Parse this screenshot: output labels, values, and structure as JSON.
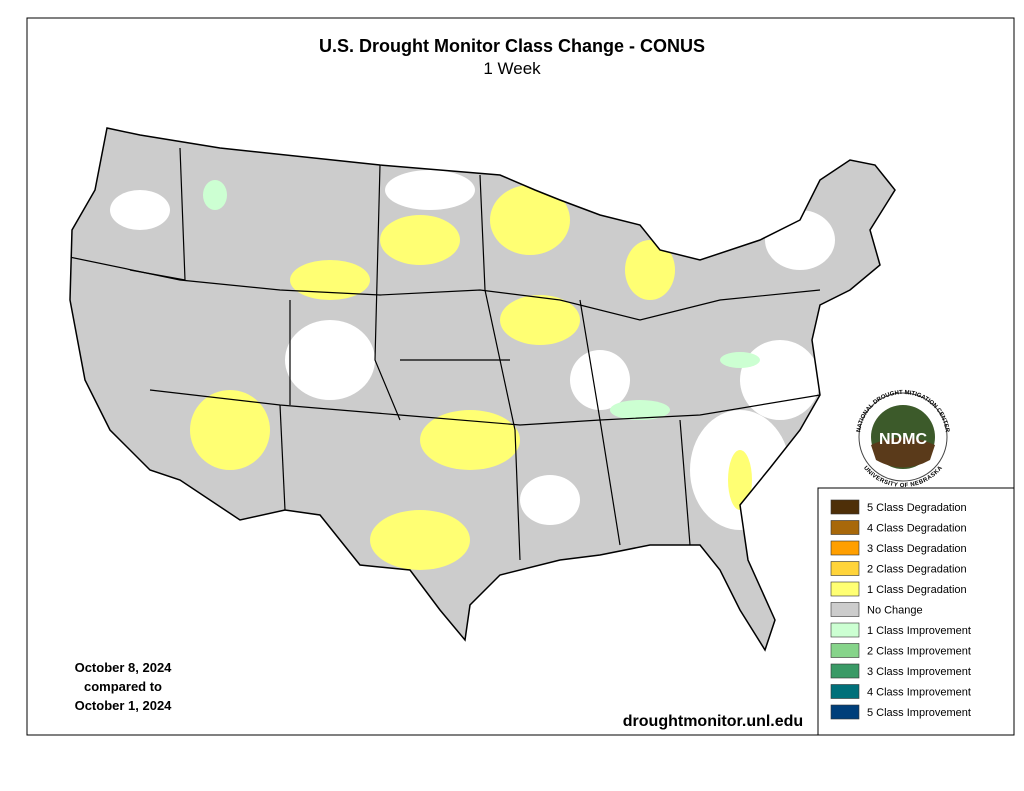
{
  "header": {
    "title": "U.S. Drought Monitor Class Change - CONUS",
    "subtitle": "1 Week"
  },
  "dates": [
    "October 8, 2024",
    "compared to",
    "October 1, 2024"
  ],
  "source": "droughtmonitor.unl.edu",
  "logo": {
    "name": "NDMC",
    "top_text": "NATIONAL DROUGHT MITIGATION CENTER",
    "bottom_text": "UNIVERSITY OF NEBRASKA"
  },
  "legend": [
    {
      "label": "5 Class Degradation",
      "color": "#4e2f08"
    },
    {
      "label": "4 Class Degradation",
      "color": "#a8680a"
    },
    {
      "label": "3 Class Degradation",
      "color": "#ff9f00"
    },
    {
      "label": "2 Class Degradation",
      "color": "#ffd43a"
    },
    {
      "label": "1 Class Degradation",
      "color": "#ffff73"
    },
    {
      "label": "No Change",
      "color": "#cccccc"
    },
    {
      "label": "1 Class Improvement",
      "color": "#ccffd2"
    },
    {
      "label": "2 Class Improvement",
      "color": "#86d48a"
    },
    {
      "label": "3 Class Improvement",
      "color": "#3a9a66"
    },
    {
      "label": "4 Class Improvement",
      "color": "#00707a"
    },
    {
      "label": "5 Class Improvement",
      "color": "#003f7a"
    }
  ]
}
